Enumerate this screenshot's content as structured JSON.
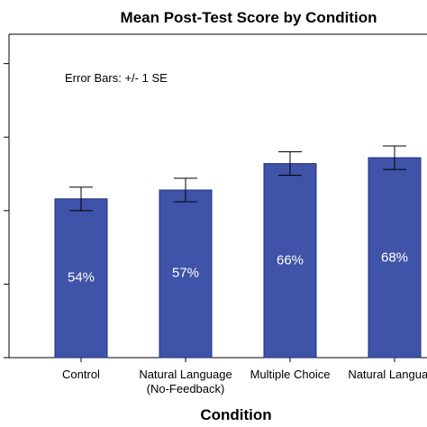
{
  "chart_data": {
    "type": "bar",
    "title": "Mean Post-Test Score by Condition",
    "xlabel": "Condition",
    "ylabel": "",
    "note": "Error Bars: +/- 1 SE",
    "categories": [
      [
        "Control"
      ],
      [
        "Natural Language",
        "(No-Feedback)"
      ],
      [
        "Multiple Choice"
      ],
      [
        "Natural Language"
      ]
    ],
    "values": [
      54,
      57,
      66,
      68
    ],
    "data_labels": [
      "54%",
      "57%",
      "66%",
      "68%"
    ],
    "error_bars": [
      {
        "low": 50,
        "high": 58
      },
      {
        "low": 53,
        "high": 61
      },
      {
        "low": 62,
        "high": 70
      },
      {
        "low": 64,
        "high": 72
      }
    ],
    "ylim": [
      0,
      110
    ],
    "y_ticks": [
      0,
      25,
      50,
      75,
      100
    ],
    "grid": false,
    "bar_color": "#3f53a8",
    "bar_edge_color": "#1f2f80",
    "label_color": "#ffffff",
    "axis_color": "#000000"
  }
}
